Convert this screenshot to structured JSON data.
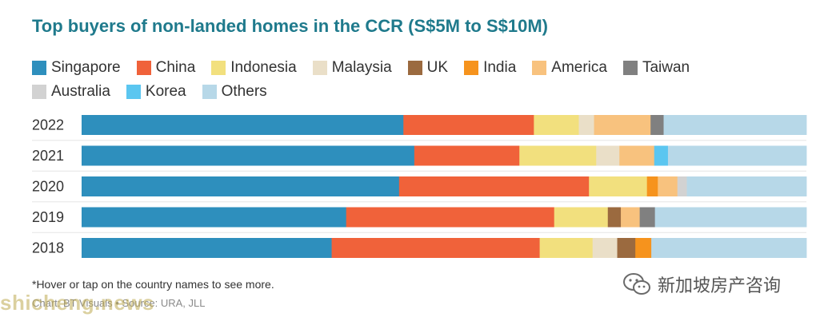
{
  "title": "Top buyers of non-landed homes in the CCR (S$5M to S$10M)",
  "legend": [
    {
      "label": "Singapore",
      "color": "#2e8fbd"
    },
    {
      "label": "China",
      "color": "#f0623a"
    },
    {
      "label": "Indonesia",
      "color": "#f2e07e"
    },
    {
      "label": "Malaysia",
      "color": "#eadfc8"
    },
    {
      "label": "UK",
      "color": "#9b6a3f"
    },
    {
      "label": "India",
      "color": "#f6931d"
    },
    {
      "label": "America",
      "color": "#f8c27e"
    },
    {
      "label": "Taiwan",
      "color": "#808080"
    },
    {
      "label": "Australia",
      "color": "#d2d2d2"
    },
    {
      "label": "Korea",
      "color": "#5bc6f0"
    },
    {
      "label": "Others",
      "color": "#b7d8e8"
    }
  ],
  "chart_data": {
    "type": "bar",
    "orientation": "horizontal",
    "stacked": true,
    "unit": "percent",
    "categories": [
      "2022",
      "2021",
      "2020",
      "2019",
      "2018"
    ],
    "xlim": [
      0,
      100
    ],
    "grid": false,
    "legend_position": "top",
    "series": [
      {
        "name": "Singapore",
        "values": [
          44.4,
          45.9,
          43.8,
          36.5,
          34.5
        ]
      },
      {
        "name": "China",
        "values": [
          18.0,
          14.5,
          26.2,
          28.7,
          28.7
        ]
      },
      {
        "name": "Indonesia",
        "values": [
          6.2,
          10.6,
          8.0,
          7.4,
          7.3
        ]
      },
      {
        "name": "Malaysia",
        "values": [
          2.1,
          3.2,
          0.0,
          0.0,
          3.4
        ]
      },
      {
        "name": "UK",
        "values": [
          0.0,
          0.0,
          0.0,
          1.8,
          2.5
        ]
      },
      {
        "name": "India",
        "values": [
          0.0,
          0.0,
          1.5,
          0.0,
          2.2
        ]
      },
      {
        "name": "America",
        "values": [
          7.8,
          4.8,
          2.7,
          2.6,
          0.0
        ]
      },
      {
        "name": "Taiwan",
        "values": [
          1.8,
          0.0,
          0.0,
          2.1,
          0.0
        ]
      },
      {
        "name": "Australia",
        "values": [
          0.0,
          0.0,
          1.3,
          0.0,
          0.0
        ]
      },
      {
        "name": "Korea",
        "values": [
          0.0,
          1.9,
          0.0,
          0.0,
          0.0
        ]
      },
      {
        "name": "Others",
        "values": [
          19.7,
          19.1,
          16.5,
          20.9,
          21.4
        ]
      }
    ]
  },
  "footnote": "*Hover or tap on the country names to see more.",
  "credit": "Chart: BT Visuals • Source: URA, JLL",
  "watermarks": {
    "site": "shicheng.news",
    "brand": "新加坡房产咨询",
    "brand_icon": "wechat-icon"
  }
}
